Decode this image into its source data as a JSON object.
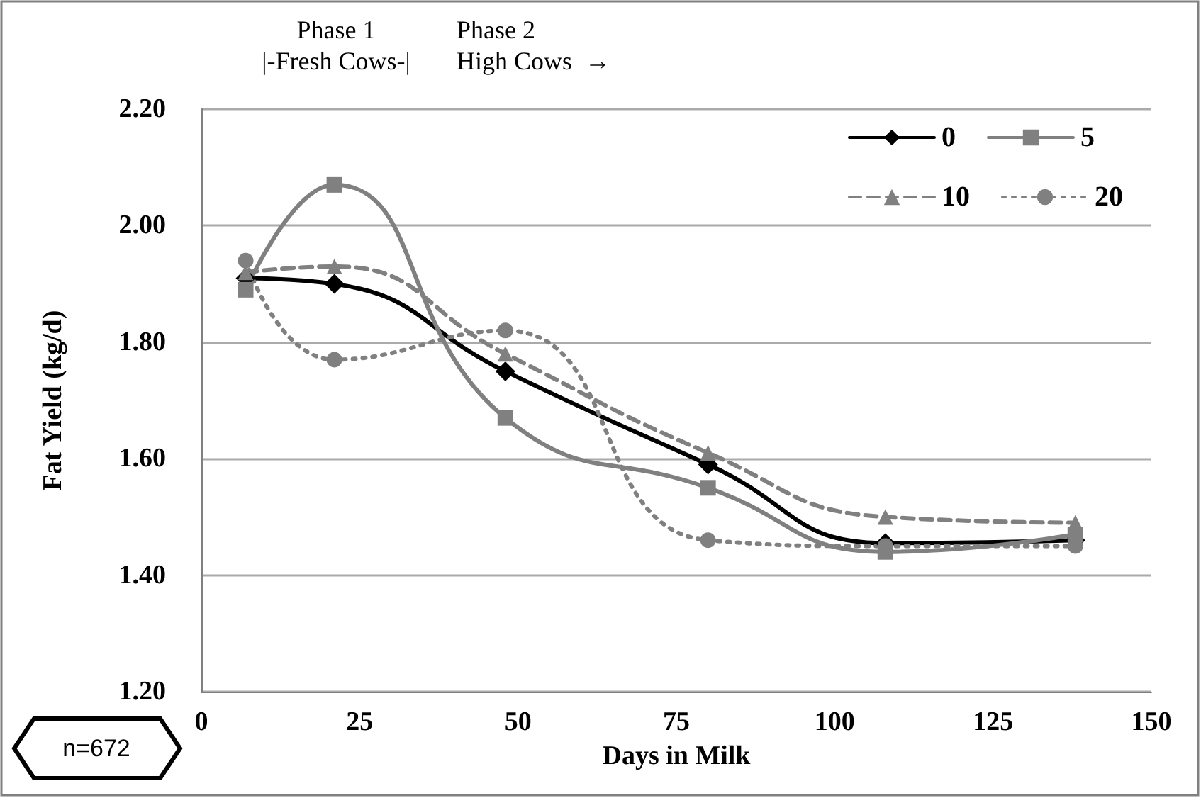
{
  "chart_data": {
    "type": "line",
    "xlabel": "Days in Milk",
    "ylabel": "Fat Yield (kg/d)",
    "x": [
      7,
      21,
      48,
      80,
      108,
      138
    ],
    "series": [
      {
        "name": "0",
        "color": "#000000",
        "marker": "diamond",
        "line_style": "solid",
        "values": [
          1.91,
          1.9,
          1.75,
          1.59,
          1.455,
          1.46
        ]
      },
      {
        "name": "5",
        "color": "#808080",
        "marker": "square",
        "line_style": "solid",
        "values": [
          1.89,
          2.07,
          1.67,
          1.55,
          1.44,
          1.47
        ]
      },
      {
        "name": "10",
        "color": "#808080",
        "marker": "triangle",
        "line_style": "dashed",
        "values": [
          1.92,
          1.93,
          1.78,
          1.61,
          1.5,
          1.49
        ]
      },
      {
        "name": "20",
        "color": "#808080",
        "marker": "circle",
        "line_style": "dotted",
        "values": [
          1.94,
          1.77,
          1.82,
          1.46,
          1.45,
          1.45
        ]
      }
    ],
    "xlim": [
      0,
      150
    ],
    "xticks": [
      0,
      25,
      50,
      75,
      100,
      125,
      150
    ],
    "ylim": [
      1.2,
      2.2
    ],
    "yticks": [
      {
        "value": 1.2,
        "label": "1.20"
      },
      {
        "value": 1.4,
        "label": "1.40"
      },
      {
        "value": 1.6,
        "label": "1.60"
      },
      {
        "value": 1.8,
        "label": "1.80"
      },
      {
        "value": 2.0,
        "label": "2.00"
      },
      {
        "value": 2.2,
        "label": "2.20"
      }
    ],
    "grid": "y",
    "legend": "top right",
    "annotations": [
      "Phase 1",
      "|-Fresh Cows-|",
      "Phase 2",
      "High Cows  →",
      "n=672"
    ]
  }
}
